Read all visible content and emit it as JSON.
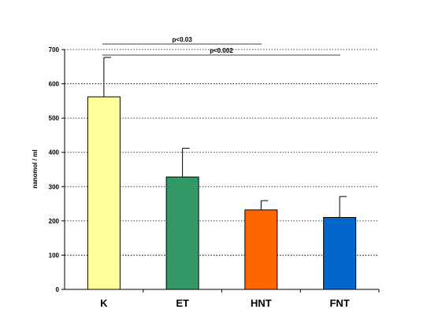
{
  "chart_data": {
    "type": "bar",
    "categories": [
      "K",
      "ET",
      "HNT",
      "FNT"
    ],
    "values": [
      562,
      328,
      232,
      210
    ],
    "errors": [
      115,
      84,
      27,
      61
    ],
    "colors": [
      "#FFFF99",
      "#339966",
      "#FF6600",
      "#0066CC"
    ],
    "ylabel": "nanomol / ml",
    "ylim": [
      0,
      700
    ],
    "yticks": [
      0,
      100,
      200,
      300,
      400,
      500,
      600,
      700
    ],
    "grid": true,
    "grid_style": "dotted",
    "annotations": [
      {
        "label": "p<0.03",
        "from": "K",
        "to": "HNT"
      },
      {
        "label": "p<0.002",
        "from": "K",
        "to": "FNT"
      }
    ]
  }
}
